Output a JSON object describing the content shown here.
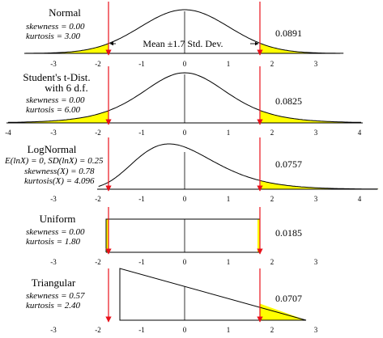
{
  "panels": [
    {
      "id": "normal",
      "title": [
        "Normal"
      ],
      "stats": [
        "skewness = 0.00",
        "kurtosis = 3.00"
      ],
      "tail_probability": "0.0891",
      "tick_labels": [
        "-3",
        "-2",
        "-1",
        "0",
        "1",
        "2",
        "3"
      ],
      "callout": "Mean ±1.7 Std. Dev."
    },
    {
      "id": "student-t",
      "title": [
        "Student's t-Dist.",
        "with 6 d.f."
      ],
      "stats": [
        "skewness = 0.00",
        "kurtosis = 6.00"
      ],
      "tail_probability": "0.0825",
      "tick_labels": [
        "-4",
        "-3",
        "-2",
        "-1",
        "0",
        "1",
        "2",
        "3",
        "4"
      ]
    },
    {
      "id": "lognormal",
      "title": [
        "LogNormal"
      ],
      "stats": [
        "E(lnX) = 0, SD(lnX) = 0.25",
        "skewness(X) = 0.78",
        "kurtosis(X) = 4.096"
      ],
      "tail_probability": "0.0757",
      "tick_labels": [
        "-3",
        "-2",
        "-1",
        "0",
        "1",
        "2",
        "3",
        "4"
      ]
    },
    {
      "id": "uniform",
      "title": [
        "Uniform"
      ],
      "stats": [
        "skewness = 0.00",
        "kurtosis = 1.80"
      ],
      "tail_probability": "0.0185",
      "tick_labels": [
        "-3",
        "-2",
        "-1",
        "0",
        "1",
        "2",
        "3"
      ]
    },
    {
      "id": "triangular",
      "title": [
        "Triangular"
      ],
      "stats": [
        "skewness = 0.57",
        "kurtosis = 2.40"
      ],
      "tail_probability": "0.0707",
      "tick_labels": [
        "-3",
        "-2",
        "-1",
        "0",
        "1",
        "2",
        "3"
      ]
    }
  ],
  "colors": {
    "curve": "#000000",
    "tail_fill": "#ffff00",
    "marker": "#e8101a"
  }
}
